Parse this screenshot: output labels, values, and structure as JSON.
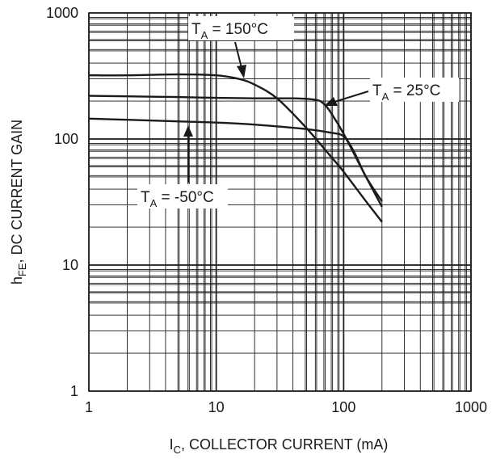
{
  "chart_data": {
    "type": "line",
    "title": "",
    "xlabel": {
      "main": "I",
      "sub": "C",
      "rest": ", COLLECTOR CURRENT (mA)"
    },
    "ylabel": {
      "main": "h",
      "sub": "FE",
      "rest": ", DC CURRENT GAIN"
    },
    "xscale": "log",
    "yscale": "log",
    "xlim": [
      1,
      1000
    ],
    "ylim": [
      1,
      1000
    ],
    "grid": true,
    "x_tick_labels": [
      "1",
      "10",
      "100",
      "1000"
    ],
    "y_tick_labels": [
      "1",
      "10",
      "100",
      "1000"
    ],
    "series": [
      {
        "name": "T_A = 150°C",
        "label": {
          "main": "T",
          "sub": "A",
          "rest": " = 150°C"
        },
        "x": [
          1,
          2,
          5,
          10,
          15,
          20,
          30,
          50,
          80,
          100,
          150,
          200
        ],
        "y": [
          320,
          320,
          325,
          320,
          300,
          270,
          210,
          125,
          72,
          55,
          32,
          22
        ]
      },
      {
        "name": "T_A = 25°C",
        "label": {
          "main": "T",
          "sub": "A",
          "rest": " = 25°C"
        },
        "x": [
          1,
          2,
          5,
          10,
          20,
          40,
          60,
          70,
          80,
          100,
          150,
          200
        ],
        "y": [
          220,
          218,
          215,
          212,
          210,
          210,
          205,
          190,
          160,
          110,
          50,
          29
        ]
      },
      {
        "name": "T_A = -50°C",
        "label": {
          "main": "T",
          "sub": "A",
          "rest": " = -50°C"
        },
        "x": [
          1,
          2,
          5,
          10,
          20,
          50,
          80,
          100,
          120,
          150,
          200
        ],
        "y": [
          145,
          142,
          138,
          135,
          130,
          120,
          112,
          105,
          80,
          50,
          32
        ]
      }
    ]
  }
}
